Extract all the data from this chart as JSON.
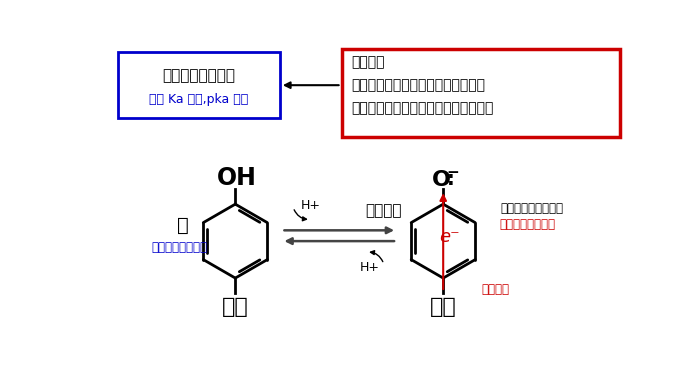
{
  "bg_color": "#ffffff",
  "box_left_text1": "酸の酸性度は弱い",
  "box_left_text2": "酸の Ka は小,pka は大",
  "box_right_text1": "置換基の",
  "box_right_text2": "電子供与性が強いほど、共役塩基の",
  "box_right_text3": "負電荷の安定性は低く、塩基性は強い",
  "left_label_acid": "酸",
  "left_label_blue": "酸性度が弱くなる",
  "left_label_kyoyo": "供与",
  "left_oh": "OH",
  "right_label_kyoyoEnki": "共役塩基",
  "right_label_fuden": "負電荷の安定性低下",
  "right_label_enkisei": "塩基性が強くなる",
  "right_label_kyoyo": "供与",
  "right_label_denshi": "電子供与",
  "right_eminus": "e⁻",
  "center_hp1": "H+",
  "center_hp2": "H+",
  "blue_color": "#0000cc",
  "red_color": "#cc0000",
  "black_color": "#000000",
  "box_left_border": "#0000cc",
  "box_right_border": "#cc0000"
}
